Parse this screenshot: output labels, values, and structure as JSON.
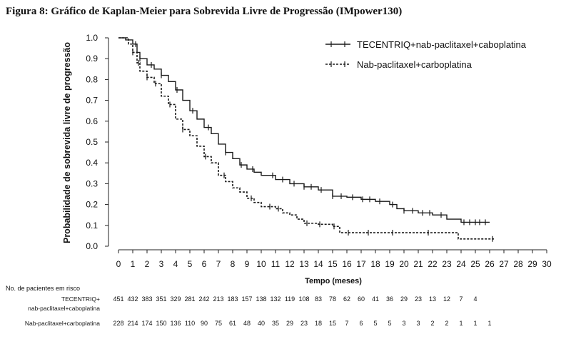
{
  "chart_data": {
    "type": "line",
    "title": "Figura 8: Gráfico de Kaplan-Meier para Sobrevida Livre de Progressão (IMpower130)",
    "xlabel": "Tempo (meses)",
    "ylabel": "Probabilidade de sobrevida livre de progressão",
    "xlim": [
      0,
      30
    ],
    "ylim": [
      0,
      1.0
    ],
    "x_ticks": [
      "0",
      "1",
      "2",
      "3",
      "4",
      "5",
      "6",
      "7",
      "8",
      "9",
      "10",
      "11",
      "12",
      "13",
      "14",
      "15",
      "16",
      "17",
      "18",
      "19",
      "20",
      "21",
      "22",
      "23",
      "24",
      "25",
      "26",
      "27",
      "28",
      "29",
      "30"
    ],
    "y_ticks": [
      "0.0",
      "0.1",
      "0.2",
      "0.3",
      "0.4",
      "0.5",
      "0.6",
      "0.7",
      "0.8",
      "0.9",
      "1.0"
    ],
    "grid": false,
    "legend_position": "top-right",
    "series": [
      {
        "name": "TECENTRIQ+nab-paclitaxel+caboplatina",
        "line_style": "solid",
        "color": "#1a1a1a",
        "points": [
          [
            0,
            1.0
          ],
          [
            0.5,
            0.99
          ],
          [
            1.0,
            0.97
          ],
          [
            1.3,
            0.93
          ],
          [
            1.5,
            0.9
          ],
          [
            2.0,
            0.87
          ],
          [
            2.5,
            0.85
          ],
          [
            3.0,
            0.82
          ],
          [
            3.5,
            0.79
          ],
          [
            4.0,
            0.75
          ],
          [
            4.5,
            0.7
          ],
          [
            5.0,
            0.65
          ],
          [
            5.5,
            0.61
          ],
          [
            6.0,
            0.57
          ],
          [
            6.5,
            0.54
          ],
          [
            7.0,
            0.49
          ],
          [
            7.5,
            0.45
          ],
          [
            8.0,
            0.42
          ],
          [
            8.5,
            0.39
          ],
          [
            9.0,
            0.37
          ],
          [
            9.5,
            0.355
          ],
          [
            10.0,
            0.34
          ],
          [
            11.0,
            0.32
          ],
          [
            12.0,
            0.3
          ],
          [
            13.0,
            0.285
          ],
          [
            14.0,
            0.27
          ],
          [
            15.0,
            0.24
          ],
          [
            16.0,
            0.235
          ],
          [
            17.0,
            0.225
          ],
          [
            18.0,
            0.215
          ],
          [
            19.0,
            0.2
          ],
          [
            19.5,
            0.18
          ],
          [
            20.0,
            0.17
          ],
          [
            21.0,
            0.16
          ],
          [
            22.0,
            0.15
          ],
          [
            23.0,
            0.13
          ],
          [
            24.0,
            0.115
          ],
          [
            25.0,
            0.115
          ],
          [
            26.0,
            0.115
          ]
        ],
        "censor_x": [
          1.2,
          1.5,
          2.3,
          3.0,
          4.1,
          5.2,
          6.3,
          7.5,
          8.6,
          9.4,
          10.8,
          11.5,
          12.3,
          13.0,
          13.5,
          14.2,
          15.0,
          15.6,
          16.4,
          17.1,
          17.6,
          18.3,
          19.2,
          20.0,
          20.6,
          21.3,
          21.8,
          22.6,
          24.2,
          24.6,
          25.0,
          25.3,
          25.7
        ]
      },
      {
        "name": "Nab-paclitaxel+carboplatina",
        "line_style": "dashed",
        "color": "#1a1a1a",
        "points": [
          [
            0,
            1.0
          ],
          [
            0.7,
            0.97
          ],
          [
            1.0,
            0.93
          ],
          [
            1.3,
            0.88
          ],
          [
            1.5,
            0.84
          ],
          [
            2.0,
            0.81
          ],
          [
            2.5,
            0.78
          ],
          [
            3.0,
            0.72
          ],
          [
            3.5,
            0.68
          ],
          [
            4.0,
            0.61
          ],
          [
            4.5,
            0.56
          ],
          [
            5.0,
            0.53
          ],
          [
            5.5,
            0.48
          ],
          [
            6.0,
            0.43
          ],
          [
            6.5,
            0.4
          ],
          [
            7.0,
            0.34
          ],
          [
            7.5,
            0.31
          ],
          [
            8.0,
            0.28
          ],
          [
            8.5,
            0.26
          ],
          [
            9.0,
            0.23
          ],
          [
            9.5,
            0.21
          ],
          [
            10.0,
            0.19
          ],
          [
            11.0,
            0.18
          ],
          [
            11.5,
            0.16
          ],
          [
            12.0,
            0.15
          ],
          [
            12.5,
            0.13
          ],
          [
            13.0,
            0.11
          ],
          [
            14.0,
            0.105
          ],
          [
            15.0,
            0.095
          ],
          [
            15.5,
            0.065
          ],
          [
            16.0,
            0.065
          ],
          [
            18.0,
            0.065
          ],
          [
            20.0,
            0.065
          ],
          [
            22.0,
            0.065
          ],
          [
            23.5,
            0.065
          ],
          [
            23.8,
            0.035
          ],
          [
            25.0,
            0.035
          ],
          [
            26.3,
            0.035
          ]
        ],
        "censor_x": [
          1.0,
          1.4,
          2.0,
          2.6,
          3.6,
          4.5,
          6.1,
          7.4,
          9.3,
          10.6,
          11.2,
          13.2,
          14.1,
          15.1,
          16.1,
          17.5,
          19.2,
          21.7,
          26.2
        ]
      }
    ],
    "risk_table": {
      "title": "No. de pacientes em risco",
      "rows": [
        {
          "label_line1": "TECENTRIQ+",
          "label_line2": "nab-paclitaxel+caboplatina",
          "values": [
            "451",
            "432",
            "383",
            "351",
            "329",
            "281",
            "242",
            "213",
            "183",
            "157",
            "138",
            "132",
            "119",
            "108",
            "83",
            "78",
            "62",
            "60",
            "41",
            "36",
            "29",
            "23",
            "13",
            "12",
            "7",
            "4"
          ]
        },
        {
          "label_line1": "Nab-paclitaxel+carboplatina",
          "label_line2": "",
          "values": [
            "228",
            "214",
            "174",
            "150",
            "136",
            "110",
            "90",
            "75",
            "61",
            "48",
            "40",
            "35",
            "29",
            "23",
            "18",
            "15",
            "7",
            "6",
            "5",
            "5",
            "3",
            "3",
            "2",
            "2",
            "1",
            "1",
            "1"
          ]
        }
      ]
    }
  }
}
